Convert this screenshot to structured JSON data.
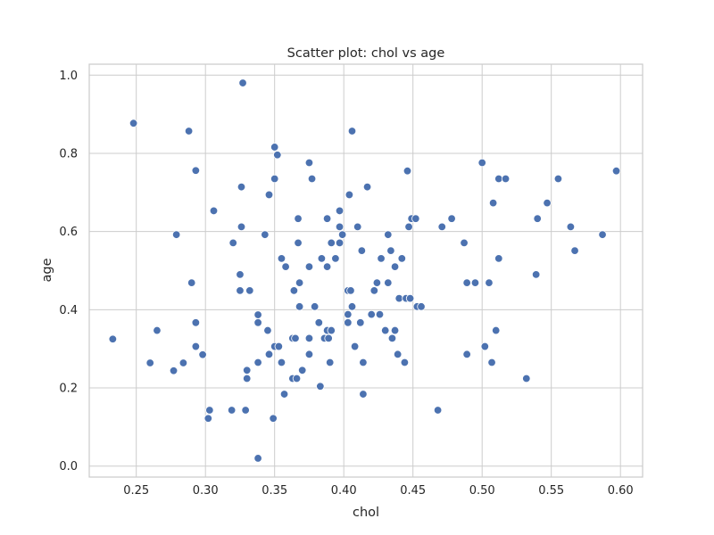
{
  "chart_data": {
    "type": "scatter",
    "title": "Scatter plot: chol vs age",
    "xlabel": "chol",
    "ylabel": "age",
    "xlim": [
      0.216,
      0.616
    ],
    "ylim": [
      -0.028,
      1.028
    ],
    "xticks": [
      0.25,
      0.3,
      0.35,
      0.4,
      0.45,
      0.5,
      0.55,
      0.6
    ],
    "xtick_labels": [
      "0.25",
      "0.30",
      "0.35",
      "0.40",
      "0.45",
      "0.50",
      "0.55",
      "0.60"
    ],
    "yticks": [
      0.0,
      0.2,
      0.4,
      0.6,
      0.8,
      1.0
    ],
    "ytick_labels": [
      "0.0",
      "0.2",
      "0.4",
      "0.6",
      "0.8",
      "1.0"
    ],
    "grid": true,
    "color": "#4c72b0",
    "points": [
      [
        0.233,
        0.325
      ],
      [
        0.248,
        0.877
      ],
      [
        0.26,
        0.264
      ],
      [
        0.265,
        0.347
      ],
      [
        0.277,
        0.244
      ],
      [
        0.279,
        0.592
      ],
      [
        0.284,
        0.264
      ],
      [
        0.288,
        0.857
      ],
      [
        0.29,
        0.469
      ],
      [
        0.293,
        0.756
      ],
      [
        0.293,
        0.367
      ],
      [
        0.293,
        0.306
      ],
      [
        0.298,
        0.285
      ],
      [
        0.302,
        0.122
      ],
      [
        0.303,
        0.143
      ],
      [
        0.306,
        0.653
      ],
      [
        0.319,
        0.143
      ],
      [
        0.32,
        0.571
      ],
      [
        0.325,
        0.49
      ],
      [
        0.325,
        0.449
      ],
      [
        0.326,
        0.612
      ],
      [
        0.326,
        0.714
      ],
      [
        0.327,
        0.98
      ],
      [
        0.329,
        0.143
      ],
      [
        0.33,
        0.245
      ],
      [
        0.33,
        0.224
      ],
      [
        0.332,
        0.449
      ],
      [
        0.338,
        0.02
      ],
      [
        0.338,
        0.265
      ],
      [
        0.338,
        0.367
      ],
      [
        0.338,
        0.387
      ],
      [
        0.343,
        0.592
      ],
      [
        0.345,
        0.347
      ],
      [
        0.346,
        0.694
      ],
      [
        0.346,
        0.286
      ],
      [
        0.349,
        0.122
      ],
      [
        0.35,
        0.306
      ],
      [
        0.35,
        0.735
      ],
      [
        0.35,
        0.816
      ],
      [
        0.352,
        0.796
      ],
      [
        0.353,
        0.306
      ],
      [
        0.355,
        0.531
      ],
      [
        0.355,
        0.265
      ],
      [
        0.357,
        0.184
      ],
      [
        0.358,
        0.51
      ],
      [
        0.363,
        0.224
      ],
      [
        0.363,
        0.327
      ],
      [
        0.364,
        0.449
      ],
      [
        0.365,
        0.327
      ],
      [
        0.366,
        0.224
      ],
      [
        0.367,
        0.571
      ],
      [
        0.367,
        0.633
      ],
      [
        0.368,
        0.469
      ],
      [
        0.368,
        0.408
      ],
      [
        0.37,
        0.245
      ],
      [
        0.375,
        0.776
      ],
      [
        0.375,
        0.51
      ],
      [
        0.375,
        0.327
      ],
      [
        0.375,
        0.286
      ],
      [
        0.377,
        0.735
      ],
      [
        0.379,
        0.408
      ],
      [
        0.382,
        0.367
      ],
      [
        0.383,
        0.204
      ],
      [
        0.384,
        0.531
      ],
      [
        0.386,
        0.327
      ],
      [
        0.388,
        0.347
      ],
      [
        0.388,
        0.633
      ],
      [
        0.388,
        0.51
      ],
      [
        0.389,
        0.327
      ],
      [
        0.39,
        0.265
      ],
      [
        0.391,
        0.571
      ],
      [
        0.391,
        0.347
      ],
      [
        0.394,
        0.531
      ],
      [
        0.397,
        0.612
      ],
      [
        0.397,
        0.571
      ],
      [
        0.397,
        0.653
      ],
      [
        0.399,
        0.592
      ],
      [
        0.403,
        0.449
      ],
      [
        0.403,
        0.388
      ],
      [
        0.403,
        0.367
      ],
      [
        0.404,
        0.694
      ],
      [
        0.405,
        0.449
      ],
      [
        0.406,
        0.857
      ],
      [
        0.406,
        0.408
      ],
      [
        0.408,
        0.306
      ],
      [
        0.41,
        0.612
      ],
      [
        0.412,
        0.367
      ],
      [
        0.413,
        0.551
      ],
      [
        0.414,
        0.184
      ],
      [
        0.414,
        0.265
      ],
      [
        0.417,
        0.714
      ],
      [
        0.42,
        0.388
      ],
      [
        0.422,
        0.449
      ],
      [
        0.424,
        0.469
      ],
      [
        0.426,
        0.388
      ],
      [
        0.427,
        0.531
      ],
      [
        0.43,
        0.347
      ],
      [
        0.432,
        0.592
      ],
      [
        0.432,
        0.469
      ],
      [
        0.434,
        0.551
      ],
      [
        0.435,
        0.327
      ],
      [
        0.437,
        0.51
      ],
      [
        0.437,
        0.347
      ],
      [
        0.439,
        0.286
      ],
      [
        0.44,
        0.429
      ],
      [
        0.442,
        0.531
      ],
      [
        0.444,
        0.265
      ],
      [
        0.445,
        0.429
      ],
      [
        0.446,
        0.755
      ],
      [
        0.447,
        0.612
      ],
      [
        0.448,
        0.429
      ],
      [
        0.449,
        0.633
      ],
      [
        0.452,
        0.633
      ],
      [
        0.453,
        0.408
      ],
      [
        0.456,
        0.408
      ],
      [
        0.468,
        0.143
      ],
      [
        0.471,
        0.612
      ],
      [
        0.478,
        0.633
      ],
      [
        0.487,
        0.571
      ],
      [
        0.489,
        0.469
      ],
      [
        0.489,
        0.286
      ],
      [
        0.495,
        0.469
      ],
      [
        0.5,
        0.776
      ],
      [
        0.502,
        0.306
      ],
      [
        0.505,
        0.469
      ],
      [
        0.507,
        0.265
      ],
      [
        0.508,
        0.673
      ],
      [
        0.51,
        0.347
      ],
      [
        0.512,
        0.735
      ],
      [
        0.512,
        0.531
      ],
      [
        0.517,
        0.735
      ],
      [
        0.532,
        0.224
      ],
      [
        0.539,
        0.49
      ],
      [
        0.54,
        0.633
      ],
      [
        0.547,
        0.673
      ],
      [
        0.555,
        0.735
      ],
      [
        0.564,
        0.612
      ],
      [
        0.567,
        0.551
      ],
      [
        0.587,
        0.592
      ],
      [
        0.597,
        0.755
      ]
    ]
  }
}
